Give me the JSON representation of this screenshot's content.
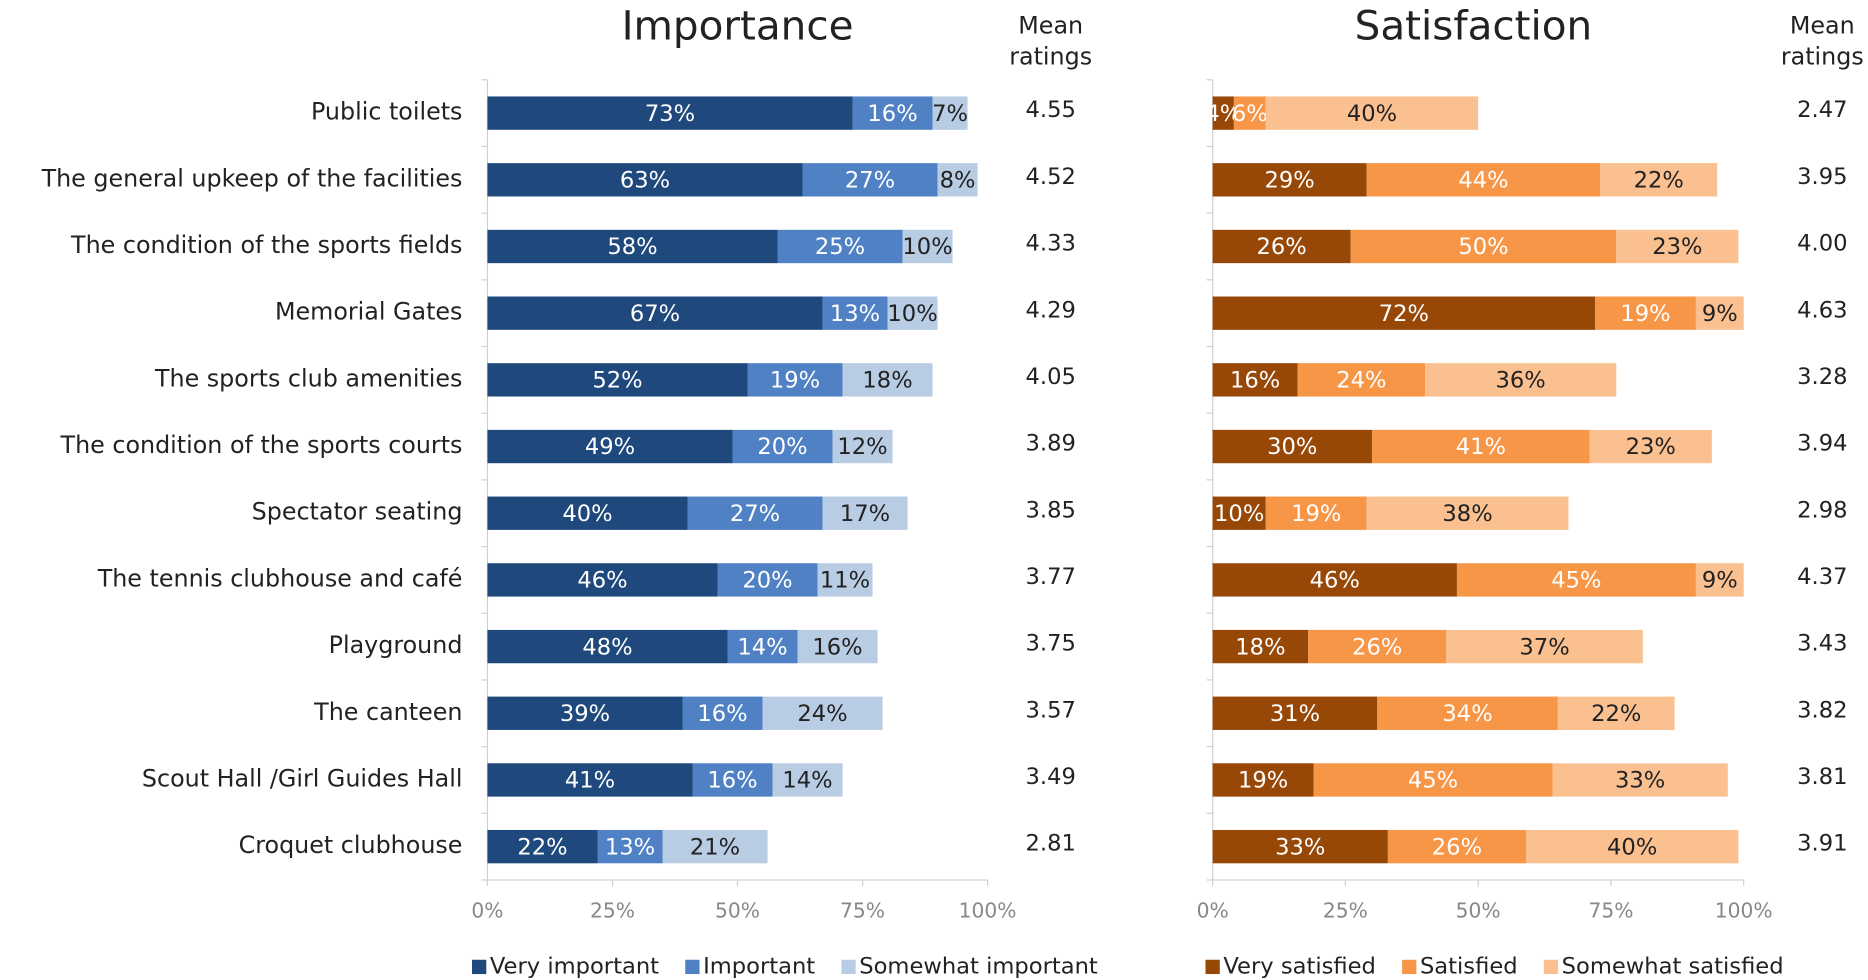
{
  "chart_data": [
    {
      "type": "bar",
      "orientation": "horizontal",
      "stacked": true,
      "title": "Importance",
      "categories": [
        "Public toilets",
        "The general upkeep of the facilities",
        "The condition of the sports fields",
        "Memorial Gates",
        "The sports club amenities",
        "The condition of the sports courts",
        "Spectator seating",
        "The tennis clubhouse and café",
        "Playground",
        "The canteen",
        "Scout Hall /Girl Guides Hall",
        "Croquet clubhouse"
      ],
      "series": [
        {
          "name": "Very important",
          "color": "#1f497d",
          "label_color": "#ffffff",
          "values": [
            73,
            63,
            58,
            67,
            52,
            49,
            40,
            46,
            48,
            39,
            41,
            22
          ],
          "value_labels": [
            "73%",
            "63%",
            "58%",
            "67%",
            "52%",
            "49%",
            "40%",
            "46%",
            "48%",
            "39%",
            "41%",
            "22%"
          ]
        },
        {
          "name": "Important",
          "color": "#4f81c4",
          "label_color": "#ffffff",
          "values": [
            16,
            27,
            25,
            13,
            19,
            20,
            27,
            20,
            14,
            16,
            16,
            13
          ],
          "value_labels": [
            "16%",
            "27%",
            "25%",
            "13%",
            "19%",
            "20%",
            "27%",
            "20%",
            "14%",
            "16%",
            "16%",
            "13%"
          ]
        },
        {
          "name": "Somewhat important",
          "color": "#b8cce4",
          "label_color": "#222222",
          "values": [
            7,
            8,
            10,
            10,
            18,
            12,
            17,
            11,
            16,
            24,
            14,
            21
          ],
          "value_labels": [
            "7%",
            "8%",
            "10%",
            "10%",
            "18%",
            "12%",
            "17%",
            "11%",
            "16%",
            "24%",
            "14%",
            "21%"
          ]
        }
      ],
      "xlim": [
        0,
        100
      ],
      "xticks": [
        {
          "value": 0,
          "label": "0%"
        },
        {
          "value": 25,
          "label": "25%"
        },
        {
          "value": 50,
          "label": "50%"
        },
        {
          "value": 75,
          "label": "75%"
        },
        {
          "value": 100,
          "label": "100%"
        }
      ],
      "legend": "bottom",
      "mean_title": "Mean ratings",
      "mean_ratings": [
        "4.55",
        "4.52",
        "4.33",
        "4.29",
        "4.05",
        "3.89",
        "3.85",
        "3.77",
        "3.75",
        "3.57",
        "3.49",
        "2.81"
      ]
    },
    {
      "type": "bar",
      "orientation": "horizontal",
      "stacked": true,
      "title": "Satisfaction",
      "series": [
        {
          "name": "Very satisfied",
          "color": "#974706",
          "label_color": "#ffffff",
          "values": [
            4,
            29,
            26,
            72,
            16,
            30,
            10,
            46,
            18,
            31,
            19,
            33
          ],
          "value_labels": [
            "4%",
            "29%",
            "26%",
            "72%",
            "16%",
            "30%",
            "10%",
            "46%",
            "18%",
            "31%",
            "19%",
            "33%"
          ]
        },
        {
          "name": "Satisfied",
          "color": "#f79646",
          "label_color": "#ffffff",
          "values": [
            6,
            44,
            50,
            19,
            24,
            41,
            19,
            45,
            26,
            34,
            45,
            26
          ],
          "value_labels": [
            "6%",
            "44%",
            "50%",
            "19%",
            "24%",
            "41%",
            "19%",
            "45%",
            "26%",
            "34%",
            "45%",
            "26%"
          ]
        },
        {
          "name": "Somewhat satisfied",
          "color": "#fac090",
          "label_color": "#222222",
          "values": [
            40,
            22,
            23,
            9,
            36,
            23,
            38,
            9,
            37,
            22,
            33,
            40
          ],
          "value_labels": [
            "40%",
            "22%",
            "23%",
            "9%",
            "36%",
            "23%",
            "38%",
            "9%",
            "37%",
            "22%",
            "33%",
            "40%"
          ]
        }
      ],
      "xlim": [
        0,
        100
      ],
      "xticks": [
        {
          "value": 0,
          "label": "0%"
        },
        {
          "value": 25,
          "label": "25%"
        },
        {
          "value": 50,
          "label": "50%"
        },
        {
          "value": 75,
          "label": "75%"
        },
        {
          "value": 100,
          "label": "100%"
        }
      ],
      "legend": "bottom",
      "mean_title": "Mean ratings",
      "mean_ratings": [
        "2.47",
        "3.95",
        "4.00",
        "4.63",
        "3.28",
        "3.94",
        "2.98",
        "4.37",
        "3.43",
        "3.82",
        "3.81",
        "3.91"
      ]
    }
  ]
}
